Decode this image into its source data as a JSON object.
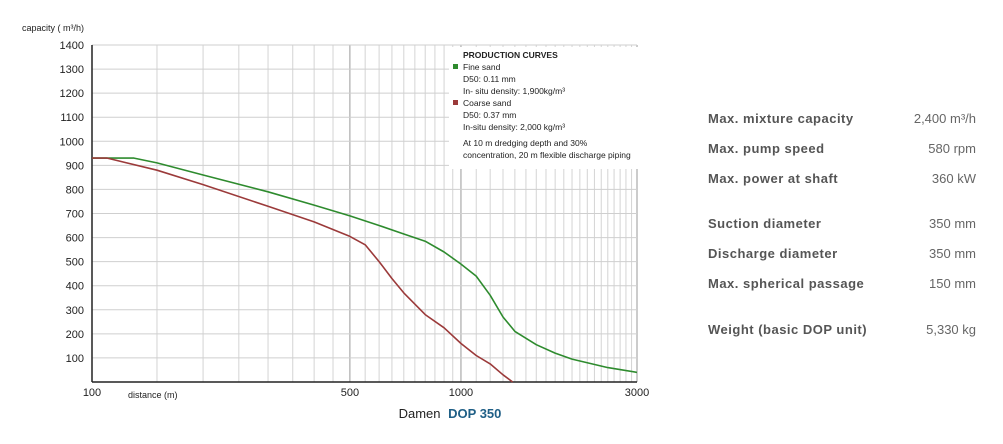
{
  "chart_data": {
    "type": "line",
    "y_axis_title": "capacity ( m³/h)",
    "x_axis_title": "distance (m)",
    "x_scale": "log",
    "xlim": [
      100,
      3000
    ],
    "ylim": [
      0,
      1400
    ],
    "y_ticks": [
      100,
      200,
      300,
      400,
      500,
      600,
      700,
      800,
      900,
      1000,
      1100,
      1200,
      1300,
      1400
    ],
    "x_ticks": [
      100,
      500,
      1000,
      3000
    ],
    "x_tick_labels": [
      "100",
      "500",
      "1000",
      "3000"
    ],
    "grid": true,
    "legend": {
      "title": "PRODUCTION CURVES",
      "placement": "top-right",
      "entries": [
        {
          "name": "Fine sand",
          "color": "#2e8b2e",
          "lines": [
            "D50: 0.11 mm",
            "In- situ density: 1,900kg/m³"
          ]
        },
        {
          "name": "Coarse sand",
          "color": "#9b3a3a",
          "lines": [
            "D50: 0.37 mm",
            "In-situ density: 2,000 kg/m³"
          ]
        }
      ],
      "note": [
        "At 10 m dredging depth and 30%",
        "concentration, 20 m flexible discharge piping"
      ]
    },
    "series": [
      {
        "name": "Fine sand",
        "color": "#2e8b2e",
        "x": [
          100,
          130,
          150,
          200,
          300,
          400,
          500,
          600,
          700,
          800,
          900,
          1000,
          1100,
          1200,
          1300,
          1400,
          1600,
          1800,
          2000,
          2500,
          3000
        ],
        "y": [
          930,
          930,
          910,
          860,
          790,
          735,
          690,
          650,
          615,
          585,
          540,
          490,
          440,
          360,
          270,
          210,
          155,
          120,
          95,
          60,
          40
        ]
      },
      {
        "name": "Coarse sand",
        "color": "#9b3a3a",
        "x": [
          100,
          110,
          150,
          200,
          300,
          400,
          500,
          550,
          600,
          650,
          700,
          800,
          900,
          1000,
          1100,
          1200,
          1300,
          1380
        ],
        "y": [
          930,
          930,
          880,
          820,
          730,
          665,
          605,
          570,
          500,
          430,
          370,
          280,
          225,
          160,
          110,
          75,
          30,
          0
        ]
      }
    ]
  },
  "specs": [
    {
      "label": "Max. mixture capacity",
      "value": "2,400 m³/h"
    },
    {
      "label": "Max. pump speed",
      "value": "580 rpm"
    },
    {
      "label": "Max. power at shaft",
      "value": "360 kW"
    },
    {
      "label": "Suction diameter",
      "value": "350 mm"
    },
    {
      "label": "Discharge diameter",
      "value": "350 mm"
    },
    {
      "label": "Max. spherical passage",
      "value": "150 mm"
    },
    {
      "label": "Weight  (basic DOP unit)",
      "value": "5,330 kg"
    }
  ],
  "caption": {
    "brand": "Damen",
    "model": "DOP 350"
  }
}
